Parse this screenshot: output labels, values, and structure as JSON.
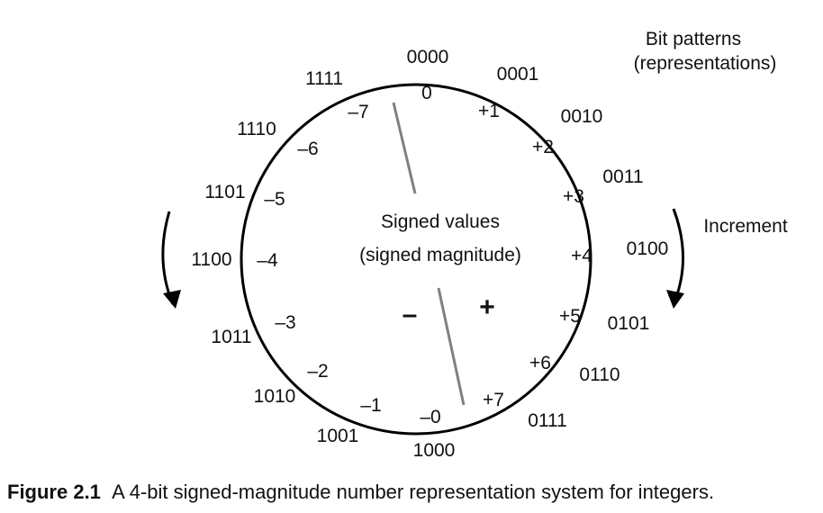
{
  "legend": {
    "line1": "Bit patterns",
    "line2": "(representations)"
  },
  "increment_label": "Increment",
  "center": {
    "line1": "Signed values",
    "line2": "(signed magnitude)"
  },
  "signs": {
    "negative": "–",
    "positive": "+"
  },
  "wheel": [
    {
      "bits": "0000",
      "value": "0"
    },
    {
      "bits": "0001",
      "value": "+1"
    },
    {
      "bits": "0010",
      "value": "+2"
    },
    {
      "bits": "0011",
      "value": "+3"
    },
    {
      "bits": "0100",
      "value": "+4"
    },
    {
      "bits": "0101",
      "value": "+5"
    },
    {
      "bits": "0110",
      "value": "+6"
    },
    {
      "bits": "0111",
      "value": "+7"
    },
    {
      "bits": "1000",
      "value": "–0"
    },
    {
      "bits": "1001",
      "value": "–1"
    },
    {
      "bits": "1010",
      "value": "–2"
    },
    {
      "bits": "1011",
      "value": "–3"
    },
    {
      "bits": "1100",
      "value": "–4"
    },
    {
      "bits": "1101",
      "value": "–5"
    },
    {
      "bits": "1110",
      "value": "–6"
    },
    {
      "bits": "1111",
      "value": "–7"
    }
  ],
  "caption": {
    "label": "Figure 2.1",
    "text": "A 4-bit signed-magnitude number representation system for integers."
  }
}
